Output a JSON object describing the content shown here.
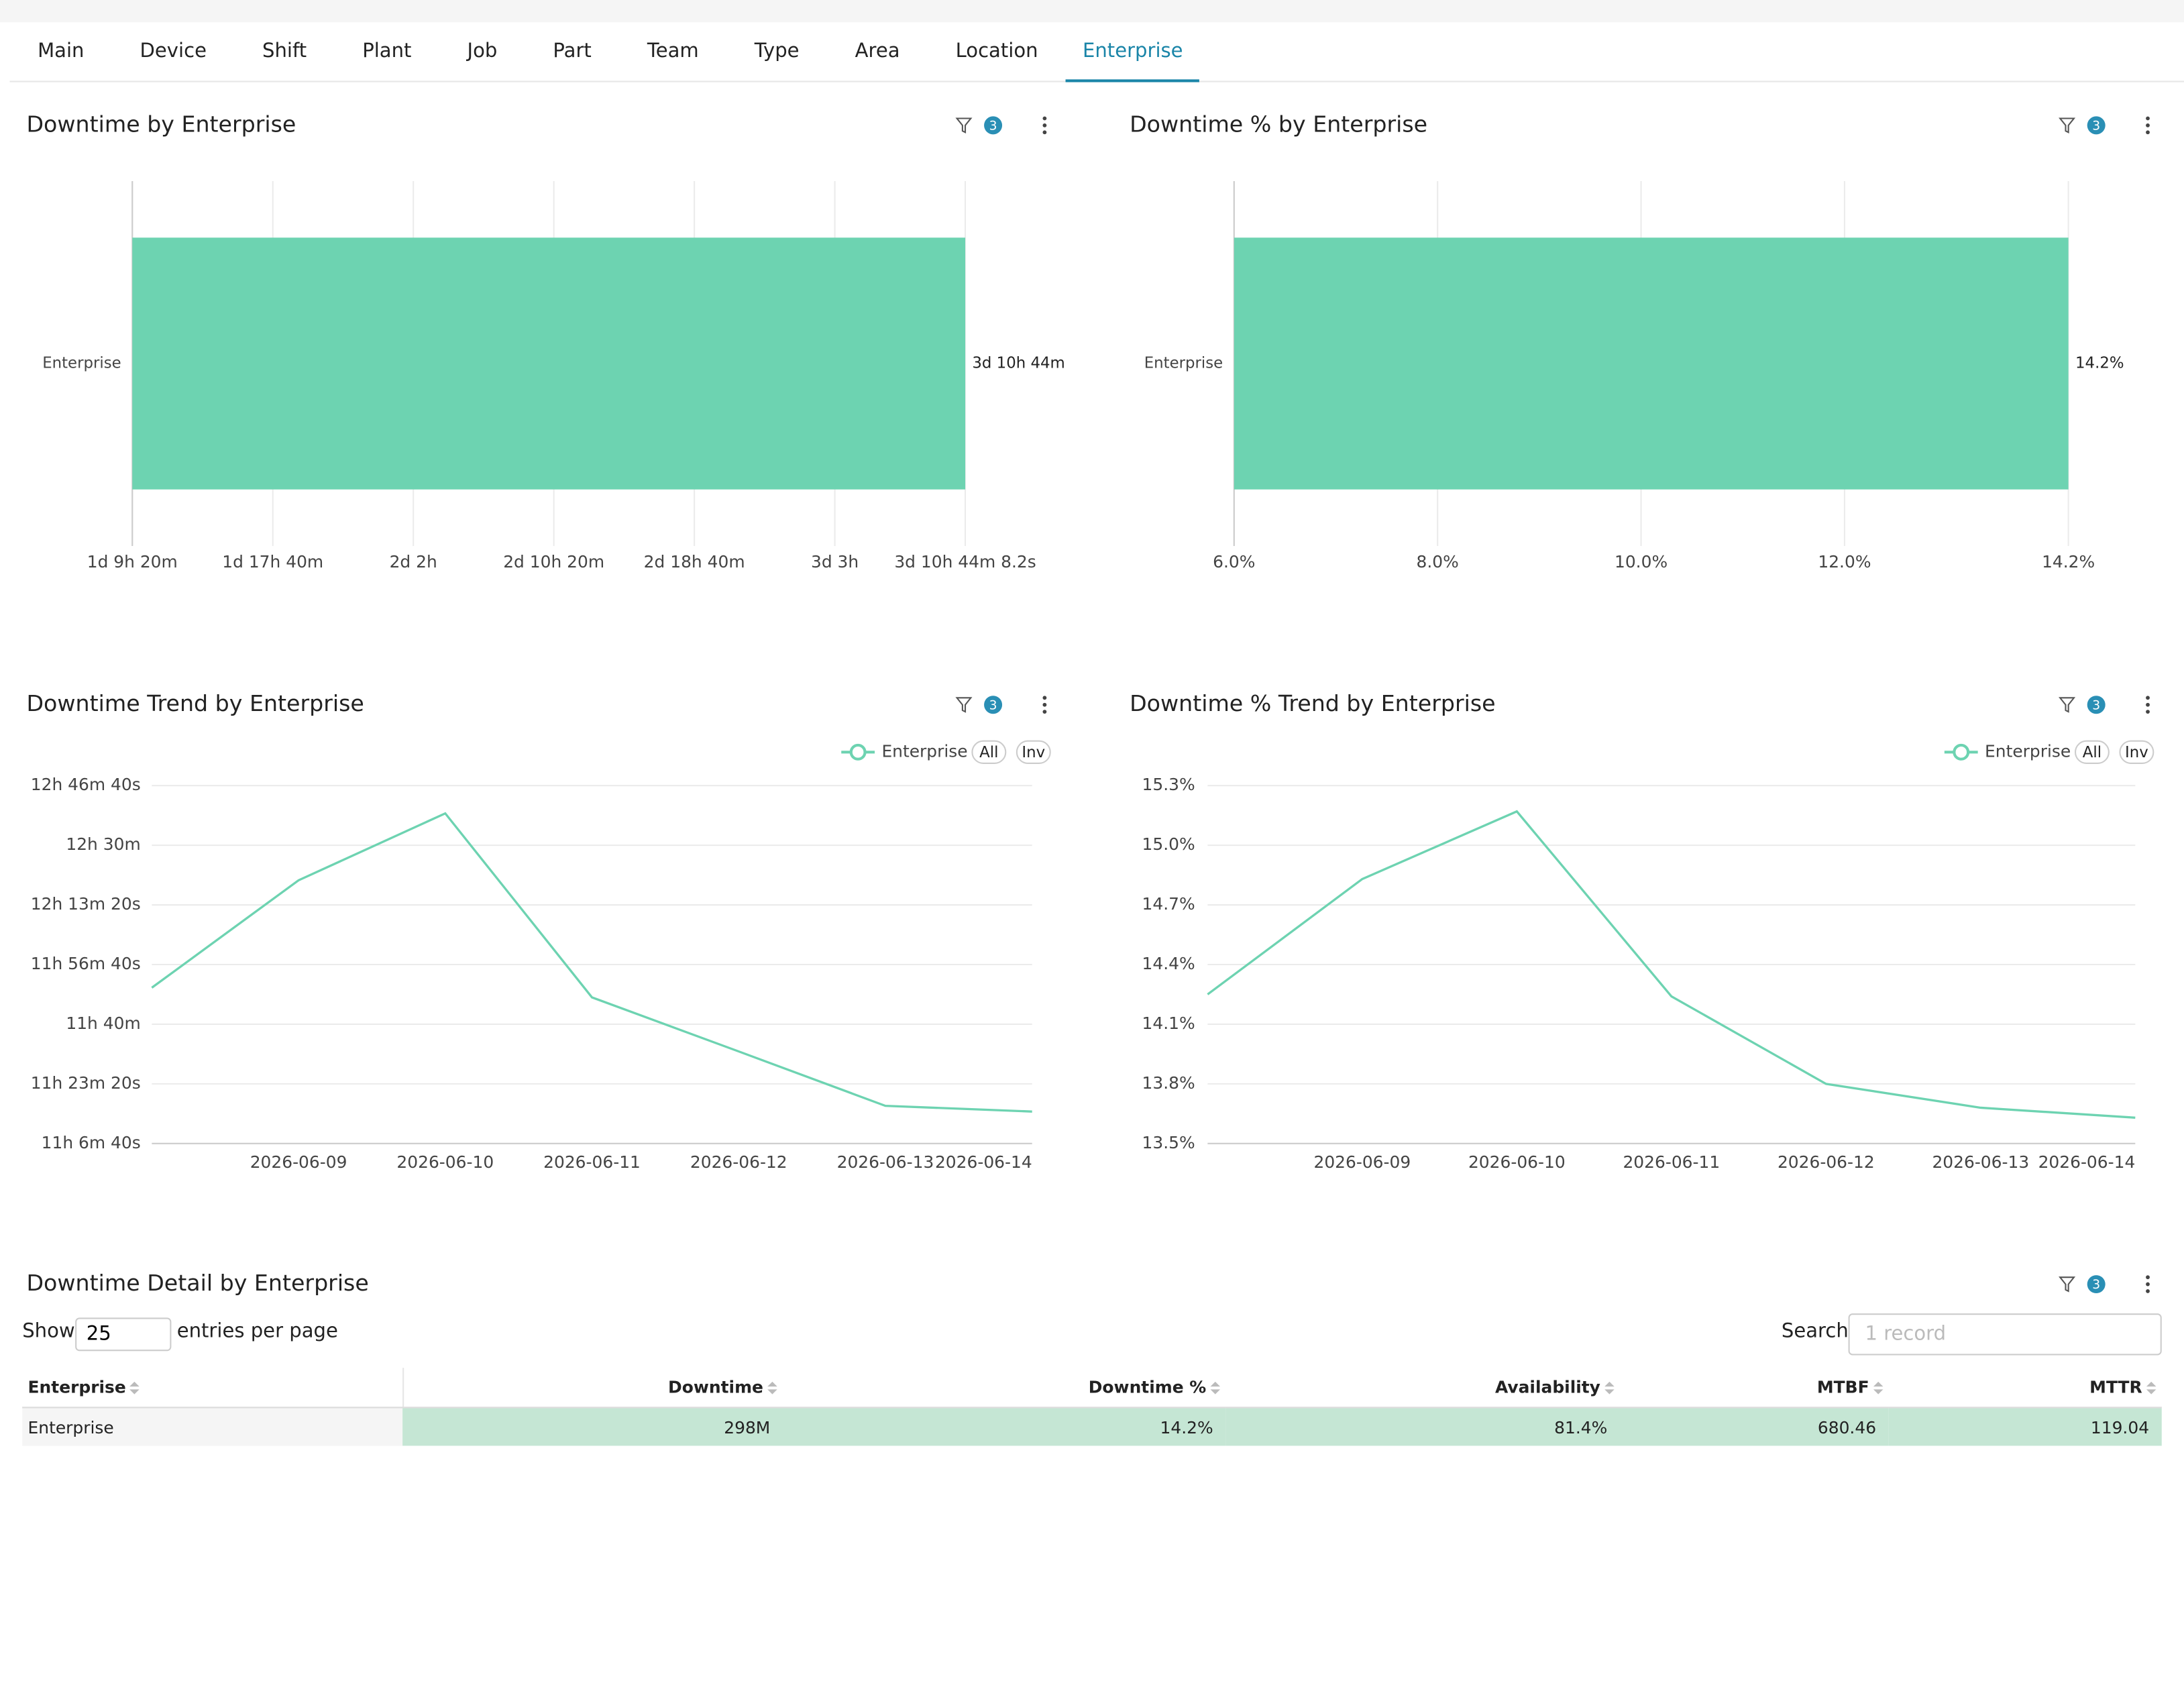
{
  "tabs": {
    "items": [
      "Main",
      "Device",
      "Shift",
      "Plant",
      "Job",
      "Part",
      "Team",
      "Type",
      "Area",
      "Location",
      "Enterprise"
    ],
    "active": 10
  },
  "chart_data": [
    {
      "type": "bar",
      "orientation": "horizontal",
      "title": "Downtime by Enterprise",
      "filters": 3,
      "categories": [
        "Enterprise"
      ],
      "values": [
        4964.137
      ],
      "value_labels": [
        "3d 10h 44m"
      ],
      "color": "#6dd3b1",
      "xlim": [
        2000,
        4964.137
      ],
      "xticks": [
        {
          "value": 2000,
          "label": "1d 9h 20m"
        },
        {
          "value": 2500,
          "label": "1d 17h 40m"
        },
        {
          "value": 3000,
          "label": "2d 2h"
        },
        {
          "value": 3500,
          "label": "2d 10h 20m"
        },
        {
          "value": 4000,
          "label": "2d 18h 40m"
        },
        {
          "value": 4500,
          "label": "3d 3h"
        },
        {
          "value": 4964.137,
          "label": "3d 10h 44m 8.2s"
        }
      ],
      "grid": true
    },
    {
      "type": "bar",
      "orientation": "horizontal",
      "title": "Downtime % by Enterprise",
      "filters": 3,
      "categories": [
        "Enterprise"
      ],
      "values": [
        14.2
      ],
      "value_labels": [
        "14.2%"
      ],
      "color": "#6dd3b1",
      "xlim": [
        6,
        14.2
      ],
      "xticks": [
        {
          "value": 6,
          "label": "6.0%"
        },
        {
          "value": 8,
          "label": "8.0%"
        },
        {
          "value": 10,
          "label": "10.0%"
        },
        {
          "value": 12,
          "label": "12.0%"
        },
        {
          "value": 14.2,
          "label": "14.2%"
        }
      ],
      "grid": true
    },
    {
      "type": "line",
      "title": "Downtime Trend by Enterprise",
      "filters": 3,
      "categories": [
        null,
        "2026-06-09",
        "2026-06-10",
        "2026-06-11",
        "2026-06-12",
        "2026-06-13",
        "2026-06-14"
      ],
      "series": [
        {
          "name": "Enterprise",
          "color": "#6dd3b1",
          "values": [
            710.2,
            740.2,
            758.9,
            707.5,
            692.4,
            677.2,
            675.6
          ]
        }
      ],
      "legend_buttons": [
        "All",
        "Inv"
      ],
      "ylim": [
        666.667,
        766.667
      ],
      "yticks": [
        {
          "value": 666.667,
          "label": "11h 6m 40s"
        },
        {
          "value": 683.333,
          "label": "11h 23m 20s"
        },
        {
          "value": 700,
          "label": "11h 40m"
        },
        {
          "value": 716.667,
          "label": "11h 56m 40s"
        },
        {
          "value": 733.333,
          "label": "12h 13m 20s"
        },
        {
          "value": 750,
          "label": "12h 30m"
        },
        {
          "value": 766.667,
          "label": "12h 46m 40s"
        }
      ],
      "grid": true
    },
    {
      "type": "line",
      "title": "Downtime % Trend by Enterprise",
      "filters": 3,
      "categories": [
        null,
        "2026-06-09",
        "2026-06-10",
        "2026-06-11",
        "2026-06-12",
        "2026-06-13",
        "2026-06-14"
      ],
      "series": [
        {
          "name": "Enterprise",
          "color": "#6dd3b1",
          "values": [
            14.25,
            14.83,
            15.17,
            14.24,
            13.8,
            13.68,
            13.63
          ]
        }
      ],
      "legend_buttons": [
        "All",
        "Inv"
      ],
      "ylim": [
        13.5,
        15.3
      ],
      "yticks": [
        {
          "value": 13.5,
          "label": "13.5%"
        },
        {
          "value": 13.8,
          "label": "13.8%"
        },
        {
          "value": 14.1,
          "label": "14.1%"
        },
        {
          "value": 14.4,
          "label": "14.4%"
        },
        {
          "value": 14.7,
          "label": "14.7%"
        },
        {
          "value": 15.0,
          "label": "15.0%"
        },
        {
          "value": 15.3,
          "label": "15.3%"
        }
      ],
      "grid": true
    }
  ],
  "table": {
    "title": "Downtime Detail by Enterprise",
    "filters": 3,
    "show_label": "Show",
    "page_size": "25",
    "per_page_label": "entries per page",
    "search_label": "Search",
    "search_placeholder": "1 record",
    "columns": [
      "Enterprise",
      "Downtime",
      "Downtime %",
      "Availability",
      "MTBF",
      "MTTR"
    ],
    "rows": [
      [
        "Enterprise",
        "298M",
        "14.2%",
        "81.4%",
        "680.46",
        "119.04"
      ]
    ]
  }
}
